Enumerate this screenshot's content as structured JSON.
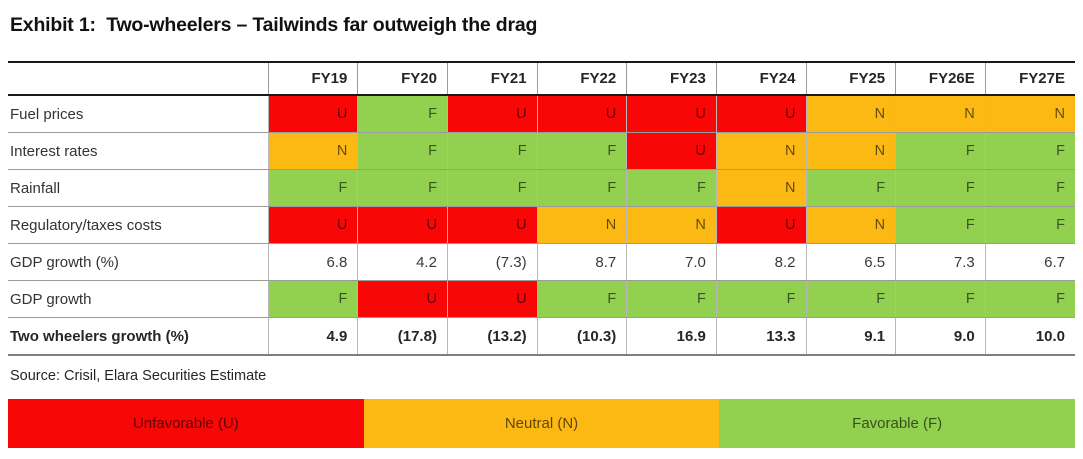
{
  "title": "Exhibit 1:  Two-wheelers – Tailwinds far outweigh the drag",
  "source": "Source: Crisil, Elara Securities Estimate",
  "status_colors": {
    "U": "#f90606",
    "N": "#fcb813",
    "F": "#91d14f"
  },
  "table": {
    "columns": [
      "FY19",
      "FY20",
      "FY21",
      "FY22",
      "FY23",
      "FY24",
      "FY25",
      "FY26E",
      "FY27E"
    ],
    "rows": [
      {
        "label": "Fuel prices",
        "type": "status",
        "bold": false,
        "values": [
          "U",
          "F",
          "U",
          "U",
          "U",
          "U",
          "N",
          "N",
          "N"
        ]
      },
      {
        "label": "Interest rates",
        "type": "status",
        "bold": false,
        "values": [
          "N",
          "F",
          "F",
          "F",
          "U",
          "N",
          "N",
          "F",
          "F"
        ]
      },
      {
        "label": "Rainfall",
        "type": "status",
        "bold": false,
        "values": [
          "F",
          "F",
          "F",
          "F",
          "F",
          "N",
          "F",
          "F",
          "F"
        ]
      },
      {
        "label": "Regulatory/taxes costs",
        "type": "status",
        "bold": false,
        "values": [
          "U",
          "U",
          "U",
          "N",
          "N",
          "U",
          "N",
          "F",
          "F"
        ]
      },
      {
        "label": "GDP growth (%)",
        "type": "number",
        "bold": false,
        "values": [
          "6.8",
          "4.2",
          "(7.3)",
          "8.7",
          "7.0",
          "8.2",
          "6.5",
          "7.3",
          "6.7"
        ]
      },
      {
        "label": "GDP growth",
        "type": "status",
        "bold": false,
        "values": [
          "F",
          "U",
          "U",
          "F",
          "F",
          "F",
          "F",
          "F",
          "F"
        ]
      },
      {
        "label": "Two wheelers growth (%)",
        "type": "number",
        "bold": true,
        "values": [
          "4.9",
          "(17.8)",
          "(13.2)",
          "(10.3)",
          "16.9",
          "13.3",
          "9.1",
          "9.0",
          "10.0"
        ]
      }
    ]
  },
  "legend": {
    "items": [
      {
        "label": "Unfavorable (U)",
        "status": "U",
        "color": "#f90606"
      },
      {
        "label": "Neutral (N)",
        "status": "N",
        "color": "#fcb813"
      },
      {
        "label": "Favorable (F)",
        "status": "F",
        "color": "#91d14f"
      }
    ]
  }
}
